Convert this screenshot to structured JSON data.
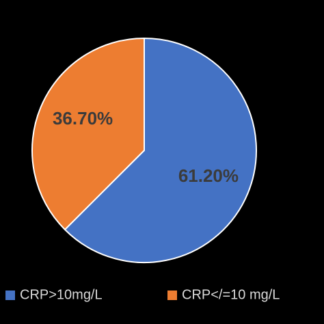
{
  "chart_data": {
    "type": "pie",
    "slices": [
      {
        "label": "CRP>10mg/L",
        "value": 61.2,
        "display": "61.20%",
        "color": "#4472C4"
      },
      {
        "label": "CRP</=10 mg/L",
        "value": 36.7,
        "display": "36.70%",
        "color": "#ED7D31"
      }
    ],
    "start_angle_deg": 0,
    "direction": "clockwise",
    "legend_position": "bottom",
    "background": "#000000",
    "slice_border_color": "#ffffff"
  }
}
